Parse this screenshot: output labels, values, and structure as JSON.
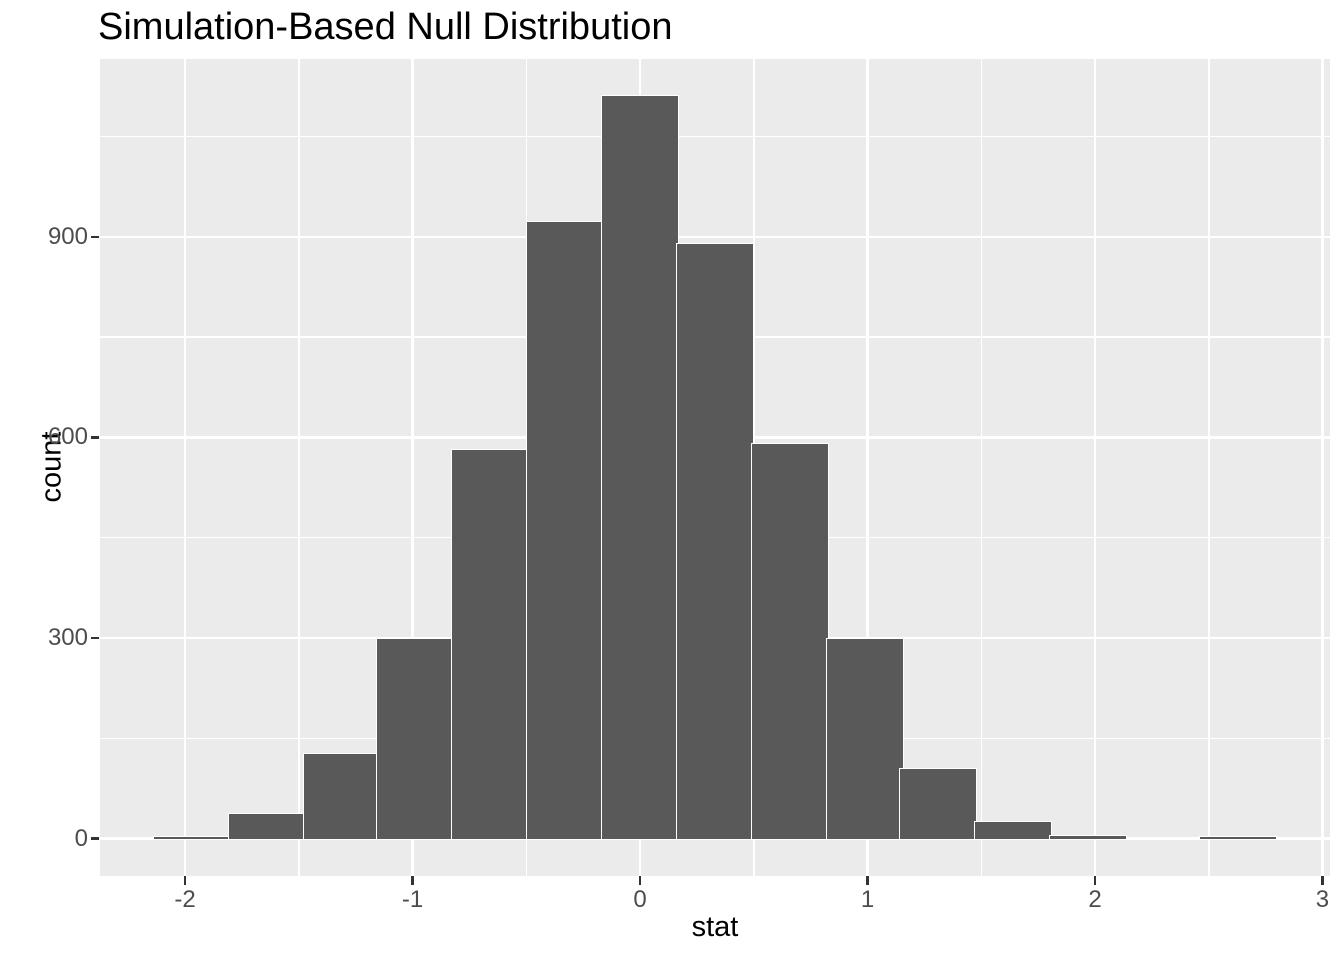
{
  "title": "Simulation-Based Null Distribution",
  "axes": {
    "x": {
      "label": "stat",
      "tick_labels": [
        "-2",
        "-1",
        "0",
        "1",
        "2",
        "3"
      ],
      "tick_values": [
        -2,
        -1,
        0,
        1,
        2,
        3
      ]
    },
    "y": {
      "label": "count",
      "tick_labels": [
        "0",
        "300",
        "600",
        "900"
      ],
      "tick_values": [
        0,
        300,
        600,
        900
      ]
    }
  },
  "chart_data": {
    "type": "bar",
    "subtype": "histogram",
    "title": "Simulation-Based Null Distribution",
    "xlabel": "stat",
    "ylabel": "count",
    "bin_width": 0.3287,
    "bin_centers": [
      -1.97,
      -1.64,
      -1.31,
      -0.99,
      -0.66,
      -0.33,
      0,
      0.33,
      0.66,
      0.99,
      1.31,
      1.64,
      1.97,
      2.3,
      2.63
    ],
    "counts": [
      2,
      36,
      126,
      298,
      580,
      922,
      1110,
      889,
      590,
      297,
      104,
      24,
      3,
      0,
      1
    ],
    "xlim": [
      -2.374,
      3.033
    ],
    "ylim": [
      -56,
      1166
    ],
    "x_major_gridlines": [
      -2,
      -1,
      0,
      1,
      2,
      3
    ],
    "x_minor_gridlines": [
      -1.5,
      -0.5,
      0.5,
      1.5,
      2.5
    ],
    "y_major_gridlines": [
      0,
      300,
      600,
      900
    ],
    "y_minor_gridlines": [
      150,
      450,
      750,
      1050
    ],
    "grid": true,
    "legend": "none"
  },
  "colors": {
    "bar_fill": "#595959",
    "bar_stroke": "#FFFFFF",
    "panel_bg": "#EBEBEB",
    "gridline": "#FFFFFF",
    "tick_label": "#4D4D4D",
    "tick_mark": "#333333",
    "title_text": "#000000",
    "page_bg": "#FFFFFF"
  }
}
